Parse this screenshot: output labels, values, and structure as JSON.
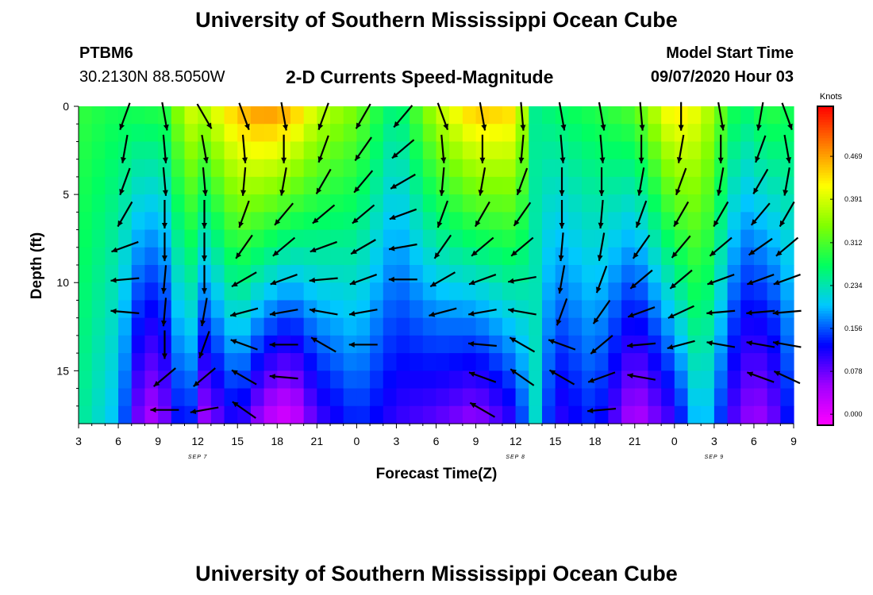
{
  "header": {
    "title": "University of Southern Mississippi Ocean Cube",
    "station_id": "PTBM6",
    "station_coords": "30.2130N 88.5050W",
    "chart_title": "2-D Currents Speed-Magnitude",
    "model_start_label": "Model Start Time",
    "model_start_value": "09/07/2020 Hour 03"
  },
  "footer": {
    "title": "University of Southern Mississippi Ocean Cube"
  },
  "chart_data": {
    "type": "heatmap",
    "title": "2-D Currents Speed-Magnitude",
    "xlabel": "Forecast Time(Z)",
    "ylabel": "Depth (ft)",
    "colorbar_unit": "Knots",
    "x_tick_labels": [
      "3",
      "6",
      "9",
      "12",
      "15",
      "18",
      "21",
      "0",
      "3",
      "6",
      "9",
      "12",
      "15",
      "18",
      "21",
      "0",
      "3",
      "6",
      "9"
    ],
    "x_range_hours": [
      0,
      54
    ],
    "day_labels": [
      {
        "text": "SEP 7",
        "at_hour": 9
      },
      {
        "text": "SEP 8",
        "at_hour": 33
      },
      {
        "text": "SEP 9",
        "at_hour": 48
      }
    ],
    "y_ticks": [
      0,
      5,
      10,
      15
    ],
    "ylim": [
      0,
      18
    ],
    "y_inverted": true,
    "colorbar_ticks": [
      "0.000",
      "0.078",
      "0.156",
      "0.234",
      "0.312",
      "0.391",
      "0.469"
    ],
    "colorbar_range": [
      -0.02,
      0.56
    ],
    "colorbar_colors": [
      "#ff00ff",
      "#a000ff",
      "#0000ff",
      "#00c8ff",
      "#00ff60",
      "#80ff00",
      "#ffff00",
      "#ff8000",
      "#ff0000"
    ],
    "speed_profiles": [
      {
        "hour": 0,
        "surface": 0.3,
        "bottom": 0.25
      },
      {
        "hour": 3,
        "surface": 0.28,
        "bottom": 0.19
      },
      {
        "hour": 5,
        "surface": 0.29,
        "bottom": 0.03
      },
      {
        "hour": 7,
        "surface": 0.3,
        "bottom": 0.08
      },
      {
        "hour": 8,
        "surface": 0.4,
        "bottom": 0.17
      },
      {
        "hour": 9.5,
        "surface": 0.38,
        "bottom": 0.05
      },
      {
        "hour": 12,
        "surface": 0.46,
        "bottom": 0.12
      },
      {
        "hour": 14,
        "surface": 0.49,
        "bottom": 0.03
      },
      {
        "hour": 16,
        "surface": 0.47,
        "bottom": 0.0
      },
      {
        "hour": 18,
        "surface": 0.39,
        "bottom": 0.09
      },
      {
        "hour": 21,
        "surface": 0.34,
        "bottom": 0.14
      },
      {
        "hour": 24,
        "surface": 0.25,
        "bottom": 0.1
      },
      {
        "hour": 27,
        "surface": 0.38,
        "bottom": 0.08
      },
      {
        "hour": 30,
        "surface": 0.46,
        "bottom": 0.05
      },
      {
        "hour": 33,
        "surface": 0.44,
        "bottom": 0.11
      },
      {
        "hour": 34.5,
        "surface": 0.25,
        "bottom": 0.22
      },
      {
        "hour": 36,
        "surface": 0.27,
        "bottom": 0.1
      },
      {
        "hour": 39,
        "surface": 0.29,
        "bottom": 0.14
      },
      {
        "hour": 42,
        "surface": 0.32,
        "bottom": 0.03
      },
      {
        "hour": 45,
        "surface": 0.44,
        "bottom": 0.1
      },
      {
        "hour": 47,
        "surface": 0.4,
        "bottom": 0.22
      },
      {
        "hour": 50,
        "surface": 0.26,
        "bottom": 0.06
      },
      {
        "hour": 52,
        "surface": 0.3,
        "bottom": 0.05
      },
      {
        "hour": 54,
        "surface": 0.28,
        "bottom": 0.15
      }
    ],
    "arrow_columns": [
      {
        "hour": 3.5,
        "dirs_deg": [
          200,
          190,
          200,
          210,
          250,
          265,
          275
        ]
      },
      {
        "hour": 6.5,
        "dirs_deg": [
          170,
          175,
          175,
          180,
          180,
          185,
          185,
          180,
          230,
          270,
          275
        ]
      },
      {
        "hour": 9.5,
        "dirs_deg": [
          150,
          170,
          175,
          180,
          180,
          180,
          190,
          200,
          230,
          260,
          280,
          290
        ]
      },
      {
        "hour": 12.5,
        "dirs_deg": [
          160,
          175,
          185,
          200,
          215,
          240,
          255,
          290,
          300,
          305
        ]
      },
      {
        "hour": 15.5,
        "dirs_deg": [
          170,
          180,
          190,
          220,
          230,
          250,
          260,
          270,
          275
        ]
      },
      {
        "hour": 18.5,
        "dirs_deg": [
          200,
          200,
          210,
          230,
          250,
          265,
          280,
          300
        ]
      },
      {
        "hour": 21.5,
        "dirs_deg": [
          210,
          215,
          220,
          230,
          240,
          250,
          260,
          270
        ]
      },
      {
        "hour": 24.5,
        "dirs_deg": [
          220,
          230,
          240,
          250,
          260,
          270
        ]
      },
      {
        "hour": 27.5,
        "dirs_deg": [
          160,
          175,
          185,
          200,
          215,
          240,
          255
        ]
      },
      {
        "hour": 30.5,
        "dirs_deg": [
          170,
          180,
          190,
          210,
          230,
          250,
          260,
          275,
          290,
          300
        ]
      },
      {
        "hour": 33.5,
        "dirs_deg": [
          175,
          185,
          200,
          215,
          230,
          260,
          280,
          300,
          305
        ]
      },
      {
        "hour": 36.5,
        "dirs_deg": [
          170,
          175,
          180,
          180,
          185,
          190,
          200,
          290,
          300
        ]
      },
      {
        "hour": 39.5,
        "dirs_deg": [
          170,
          175,
          180,
          185,
          190,
          200,
          215,
          230,
          250,
          265
        ]
      },
      {
        "hour": 42.5,
        "dirs_deg": [
          175,
          180,
          190,
          200,
          215,
          230,
          250,
          265,
          280
        ]
      },
      {
        "hour": 45.5,
        "dirs_deg": [
          180,
          190,
          200,
          210,
          220,
          230,
          245,
          255
        ]
      },
      {
        "hour": 48.5,
        "dirs_deg": [
          170,
          180,
          190,
          210,
          230,
          250,
          265,
          280
        ]
      },
      {
        "hour": 51.5,
        "dirs_deg": [
          190,
          200,
          210,
          220,
          235,
          250,
          265,
          280,
          290
        ]
      },
      {
        "hour": 53.5,
        "dirs_deg": [
          160,
          170,
          190,
          210,
          230,
          250,
          265,
          280,
          295
        ]
      }
    ]
  }
}
